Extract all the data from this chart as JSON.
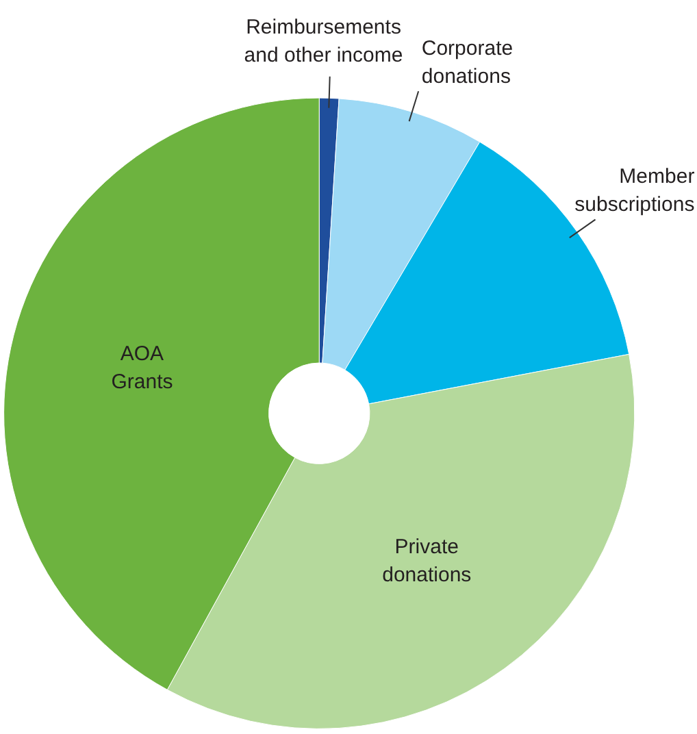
{
  "chart_data": {
    "type": "donut",
    "categories": [
      "Reimbursements\nand other income",
      "Corporate\ndonations",
      "Member\nsubscriptions",
      "Private\ndonations",
      "AOA\nGrants"
    ],
    "values": [
      1,
      7.5,
      13.5,
      36,
      42
    ],
    "colors": [
      "#1f4e9c",
      "#9dd9f5",
      "#00b5e8",
      "#b5d99c",
      "#6db33f"
    ]
  }
}
